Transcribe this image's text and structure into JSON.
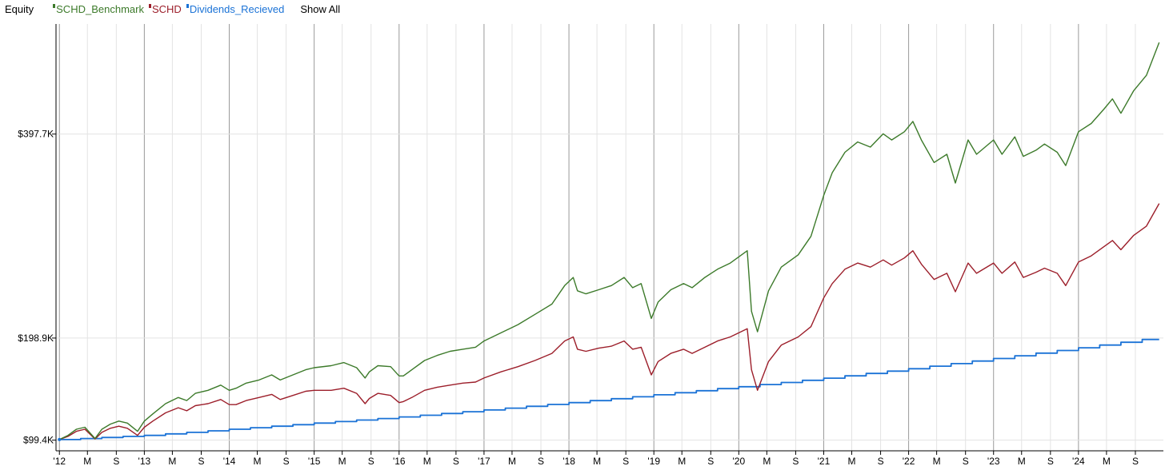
{
  "header": {
    "title": "Equity",
    "show_all_label": "Show All"
  },
  "chart_data": {
    "type": "line",
    "title": "Equity",
    "xlabel": "",
    "ylabel": "",
    "legend_position": "top-left",
    "grid": true,
    "xlim": [
      2012.0,
      2025.0
    ],
    "ylim": [
      89000,
      505000
    ],
    "y_ticks": [
      {
        "value": 99400,
        "label": "$99.4K"
      },
      {
        "value": 198900,
        "label": "$198.9K"
      },
      {
        "value": 397700,
        "label": "$397.7K"
      }
    ],
    "x_ticks": [
      {
        "value": 2012.0,
        "label": "'12",
        "major": true
      },
      {
        "value": 2012.33,
        "label": "M",
        "major": false
      },
      {
        "value": 2012.67,
        "label": "S",
        "major": false
      },
      {
        "value": 2013.0,
        "label": "'13",
        "major": true
      },
      {
        "value": 2013.33,
        "label": "M",
        "major": false
      },
      {
        "value": 2013.67,
        "label": "S",
        "major": false
      },
      {
        "value": 2014.0,
        "label": "'14",
        "major": true
      },
      {
        "value": 2014.33,
        "label": "M",
        "major": false
      },
      {
        "value": 2014.67,
        "label": "S",
        "major": false
      },
      {
        "value": 2015.0,
        "label": "'15",
        "major": true
      },
      {
        "value": 2015.33,
        "label": "M",
        "major": false
      },
      {
        "value": 2015.67,
        "label": "S",
        "major": false
      },
      {
        "value": 2016.0,
        "label": "'16",
        "major": true
      },
      {
        "value": 2016.33,
        "label": "M",
        "major": false
      },
      {
        "value": 2016.67,
        "label": "S",
        "major": false
      },
      {
        "value": 2017.0,
        "label": "'17",
        "major": true
      },
      {
        "value": 2017.33,
        "label": "M",
        "major": false
      },
      {
        "value": 2017.67,
        "label": "S",
        "major": false
      },
      {
        "value": 2018.0,
        "label": "'18",
        "major": true
      },
      {
        "value": 2018.33,
        "label": "M",
        "major": false
      },
      {
        "value": 2018.67,
        "label": "S",
        "major": false
      },
      {
        "value": 2019.0,
        "label": "'19",
        "major": true
      },
      {
        "value": 2019.33,
        "label": "M",
        "major": false
      },
      {
        "value": 2019.67,
        "label": "S",
        "major": false
      },
      {
        "value": 2020.0,
        "label": "'20",
        "major": true
      },
      {
        "value": 2020.33,
        "label": "M",
        "major": false
      },
      {
        "value": 2020.67,
        "label": "S",
        "major": false
      },
      {
        "value": 2021.0,
        "label": "'21",
        "major": true
      },
      {
        "value": 2021.33,
        "label": "M",
        "major": false
      },
      {
        "value": 2021.67,
        "label": "S",
        "major": false
      },
      {
        "value": 2022.0,
        "label": "'22",
        "major": true
      },
      {
        "value": 2022.33,
        "label": "M",
        "major": false
      },
      {
        "value": 2022.67,
        "label": "S",
        "major": false
      },
      {
        "value": 2023.0,
        "label": "'23",
        "major": true
      },
      {
        "value": 2023.33,
        "label": "M",
        "major": false
      },
      {
        "value": 2023.67,
        "label": "S",
        "major": false
      },
      {
        "value": 2024.0,
        "label": "'24",
        "major": true
      },
      {
        "value": 2024.33,
        "label": "M",
        "major": false
      },
      {
        "value": 2024.67,
        "label": "S",
        "major": false
      }
    ],
    "series": [
      {
        "name": "SCHD_Benchmark",
        "color": "#3c7a2a",
        "x": [
          2012.0,
          2012.1,
          2012.2,
          2012.3,
          2012.42,
          2012.5,
          2012.6,
          2012.7,
          2012.8,
          2012.92,
          2013.0,
          2013.1,
          2013.25,
          2013.4,
          2013.5,
          2013.6,
          2013.75,
          2013.9,
          2014.0,
          2014.08,
          2014.2,
          2014.35,
          2014.5,
          2014.6,
          2014.75,
          2014.9,
          2015.0,
          2015.2,
          2015.35,
          2015.5,
          2015.6,
          2015.65,
          2015.75,
          2015.9,
          2016.0,
          2016.05,
          2016.15,
          2016.3,
          2016.45,
          2016.6,
          2016.75,
          2016.9,
          2017.0,
          2017.2,
          2017.4,
          2017.6,
          2017.8,
          2017.95,
          2018.05,
          2018.1,
          2018.2,
          2018.35,
          2018.5,
          2018.65,
          2018.75,
          2018.85,
          2018.97,
          2019.05,
          2019.2,
          2019.35,
          2019.45,
          2019.6,
          2019.75,
          2019.9,
          2020.1,
          2020.15,
          2020.22,
          2020.35,
          2020.5,
          2020.7,
          2020.85,
          2021.0,
          2021.1,
          2021.25,
          2021.4,
          2021.55,
          2021.7,
          2021.8,
          2021.95,
          2022.05,
          2022.15,
          2022.3,
          2022.45,
          2022.55,
          2022.7,
          2022.8,
          2023.0,
          2023.1,
          2023.25,
          2023.35,
          2023.5,
          2023.6,
          2023.75,
          2023.85,
          2024.0,
          2024.15,
          2024.3,
          2024.4,
          2024.5,
          2024.65,
          2024.8,
          2024.95
        ],
        "y": [
          100000,
          104000,
          110000,
          112000,
          101000,
          110000,
          115000,
          118000,
          116000,
          108000,
          118000,
          125000,
          135000,
          141000,
          138000,
          145000,
          148000,
          153000,
          148000,
          150000,
          155000,
          158000,
          163000,
          158000,
          163000,
          168000,
          170000,
          172000,
          175000,
          170000,
          160000,
          166000,
          172000,
          171000,
          162000,
          162000,
          168000,
          177000,
          182000,
          186000,
          188000,
          190000,
          196000,
          204000,
          212000,
          222000,
          232000,
          250000,
          258000,
          245000,
          242000,
          246000,
          250000,
          258000,
          248000,
          252000,
          218000,
          234000,
          246000,
          252000,
          248000,
          258000,
          266000,
          272000,
          284000,
          225000,
          205000,
          245000,
          268000,
          280000,
          298000,
          338000,
          360000,
          380000,
          390000,
          385000,
          398000,
          392000,
          400000,
          410000,
          392000,
          370000,
          378000,
          350000,
          392000,
          378000,
          392000,
          378000,
          395000,
          376000,
          382000,
          388000,
          380000,
          367000,
          400000,
          408000,
          422000,
          432000,
          418000,
          440000,
          455000,
          487000
        ]
      },
      {
        "name": "SCHD",
        "color": "#9c1e2a",
        "x": [
          2012.0,
          2012.1,
          2012.2,
          2012.3,
          2012.42,
          2012.5,
          2012.6,
          2012.7,
          2012.8,
          2012.92,
          2013.0,
          2013.1,
          2013.25,
          2013.4,
          2013.5,
          2013.6,
          2013.75,
          2013.9,
          2014.0,
          2014.08,
          2014.2,
          2014.35,
          2014.5,
          2014.6,
          2014.75,
          2014.9,
          2015.0,
          2015.2,
          2015.35,
          2015.5,
          2015.6,
          2015.65,
          2015.75,
          2015.9,
          2016.0,
          2016.05,
          2016.15,
          2016.3,
          2016.45,
          2016.6,
          2016.75,
          2016.9,
          2017.0,
          2017.2,
          2017.4,
          2017.6,
          2017.8,
          2017.95,
          2018.05,
          2018.1,
          2018.2,
          2018.35,
          2018.5,
          2018.65,
          2018.75,
          2018.85,
          2018.97,
          2019.05,
          2019.2,
          2019.35,
          2019.45,
          2019.6,
          2019.75,
          2019.9,
          2020.1,
          2020.15,
          2020.22,
          2020.35,
          2020.5,
          2020.7,
          2020.85,
          2021.0,
          2021.1,
          2021.25,
          2021.4,
          2021.55,
          2021.7,
          2021.8,
          2021.95,
          2022.05,
          2022.15,
          2022.3,
          2022.45,
          2022.55,
          2022.7,
          2022.8,
          2023.0,
          2023.1,
          2023.25,
          2023.35,
          2023.5,
          2023.6,
          2023.75,
          2023.85,
          2024.0,
          2024.15,
          2024.3,
          2024.4,
          2024.5,
          2024.65,
          2024.8,
          2024.95
        ],
        "y": [
          100000,
          103000,
          108000,
          110000,
          100500,
          107000,
          111000,
          113000,
          111000,
          104000,
          112000,
          118000,
          126000,
          131000,
          128000,
          133000,
          135000,
          139000,
          134000,
          134000,
          138000,
          141000,
          144000,
          139000,
          143000,
          147000,
          148000,
          148000,
          150000,
          145000,
          135000,
          140000,
          145000,
          143000,
          136000,
          137000,
          141000,
          148000,
          151000,
          153000,
          155000,
          156000,
          160000,
          166000,
          171000,
          177000,
          184000,
          196000,
          200000,
          188000,
          186000,
          189000,
          191000,
          196000,
          188000,
          190000,
          163000,
          176000,
          184000,
          188000,
          184000,
          190000,
          196000,
          200000,
          208000,
          168000,
          148000,
          176000,
          192000,
          200000,
          210000,
          238000,
          252000,
          266000,
          272000,
          268000,
          275000,
          270000,
          277000,
          284000,
          271000,
          256000,
          262000,
          244000,
          272000,
          262000,
          272000,
          262000,
          273000,
          258000,
          263000,
          267000,
          262000,
          250000,
          273000,
          279000,
          288000,
          294000,
          285000,
          299000,
          308000,
          330000
        ]
      },
      {
        "name": "Dividends_Recieved",
        "color": "#1a72d6",
        "step": true,
        "x": [
          2012.0,
          2012.25,
          2012.5,
          2012.75,
          2013.0,
          2013.25,
          2013.5,
          2013.75,
          2014.0,
          2014.25,
          2014.5,
          2014.75,
          2015.0,
          2015.25,
          2015.5,
          2015.75,
          2016.0,
          2016.25,
          2016.5,
          2016.75,
          2017.0,
          2017.25,
          2017.5,
          2017.75,
          2018.0,
          2018.25,
          2018.5,
          2018.75,
          2019.0,
          2019.25,
          2019.5,
          2019.75,
          2020.0,
          2020.25,
          2020.5,
          2020.75,
          2021.0,
          2021.25,
          2021.5,
          2021.75,
          2022.0,
          2022.25,
          2022.5,
          2022.75,
          2023.0,
          2023.25,
          2023.5,
          2023.75,
          2024.0,
          2024.25,
          2024.5,
          2024.75,
          2024.95
        ],
        "y": [
          100000,
          101000,
          102000,
          103000,
          104000,
          105500,
          107000,
          108500,
          110000,
          111500,
          113000,
          114500,
          116000,
          117500,
          119000,
          120500,
          122000,
          123700,
          125400,
          127100,
          128800,
          130600,
          132400,
          134200,
          136000,
          137900,
          139800,
          141700,
          143600,
          145600,
          147600,
          149600,
          151500,
          153600,
          155600,
          157700,
          159800,
          162100,
          164400,
          166700,
          169000,
          171500,
          174000,
          176500,
          179000,
          181600,
          184200,
          186800,
          189400,
          192100,
          194800,
          197500,
          197500
        ]
      }
    ]
  }
}
